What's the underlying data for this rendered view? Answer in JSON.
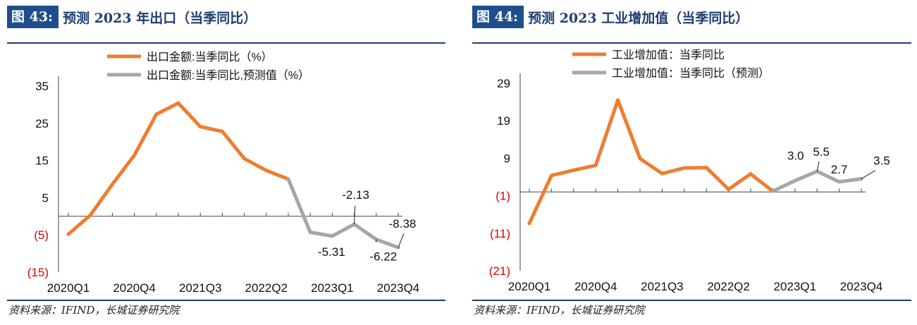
{
  "left": {
    "fig_tag": "图 43:",
    "title": "预测 2023 年出口（当季同比）",
    "source": "资料来源：IFIND，长城证券研究院",
    "chart_data": {
      "type": "line",
      "legend": [
        "出口金额:当季同比（%）",
        "出口金额:当季同比,预测值（%）"
      ],
      "legend_position": "top",
      "ylim": [
        -15,
        40
      ],
      "yticks": [
        35,
        25,
        15,
        5,
        -5,
        -15
      ],
      "ytick_labels": [
        "35",
        "25",
        "15",
        "5",
        "(5)",
        "(15)"
      ],
      "xticks": [
        "2020Q1",
        "2020Q4",
        "2021Q3",
        "2022Q2",
        "2023Q1",
        "2023Q4"
      ],
      "x": [
        "2020Q1",
        "2020Q2",
        "2020Q3",
        "2020Q4",
        "2021Q1",
        "2021Q2",
        "2021Q3",
        "2021Q4",
        "2022Q1",
        "2022Q2",
        "2022Q3",
        "2022Q4",
        "2023Q1",
        "2023Q2",
        "2023Q3",
        "2023Q4"
      ],
      "series": [
        {
          "name": "出口金额:当季同比（%）",
          "color": "#ed7d31",
          "values": [
            -4.8,
            0.3,
            8.6,
            16.4,
            27.4,
            30.4,
            24.1,
            22.8,
            15.5,
            12.3,
            10.0,
            null,
            null,
            null,
            null,
            null
          ]
        },
        {
          "name": "出口金额:当季同比,预测值（%）",
          "color": "#a6a6a6",
          "values": [
            null,
            null,
            null,
            null,
            null,
            null,
            null,
            null,
            null,
            null,
            10.0,
            -4.3,
            -5.31,
            -2.13,
            -6.22,
            -8.38
          ]
        }
      ],
      "data_labels": [
        {
          "x": "2023Q1",
          "text": "-5.31"
        },
        {
          "x": "2023Q2",
          "text": "-2.13"
        },
        {
          "x": "2023Q3",
          "text": "-6.22"
        },
        {
          "x": "2023Q4",
          "text": "-8.38"
        }
      ]
    }
  },
  "right": {
    "fig_tag": "图 44:",
    "title": "预测 2023 工业增加值（当季同比）",
    "source": "资料来源：IFIND，长城证券研究院",
    "chart_data": {
      "type": "line",
      "legend": [
        "工业增加值：当季同比",
        "工业增加值：当季同比（预测）"
      ],
      "legend_position": "top",
      "ylim": [
        -21,
        29
      ],
      "yticks": [
        29,
        19,
        9,
        -1,
        -11,
        -21
      ],
      "ytick_labels": [
        "29",
        "19",
        "9",
        "(1)",
        "(11)",
        "(21)"
      ],
      "xticks": [
        "2020Q1",
        "2020Q4",
        "2021Q3",
        "2022Q2",
        "2023Q1",
        "2023Q4"
      ],
      "x": [
        "2020Q1",
        "2020Q2",
        "2020Q3",
        "2020Q4",
        "2021Q1",
        "2021Q2",
        "2021Q3",
        "2021Q4",
        "2022Q1",
        "2022Q2",
        "2022Q3",
        "2022Q4",
        "2023Q1",
        "2023Q2",
        "2023Q3",
        "2023Q4"
      ],
      "series": [
        {
          "name": "工业增加值：当季同比",
          "color": "#ed7d31",
          "values": [
            -8.4,
            4.4,
            5.8,
            7.1,
            24.5,
            8.9,
            4.9,
            6.4,
            6.5,
            0.7,
            4.8,
            0.2,
            null,
            null,
            null,
            null
          ]
        },
        {
          "name": "工业增加值：当季同比（预测）",
          "color": "#a6a6a6",
          "values": [
            null,
            null,
            null,
            null,
            null,
            null,
            null,
            null,
            null,
            null,
            null,
            0.2,
            3.0,
            5.5,
            2.7,
            3.5
          ]
        }
      ],
      "data_labels": [
        {
          "x": "2023Q1",
          "text": "3.0"
        },
        {
          "x": "2023Q2",
          "text": "5.5"
        },
        {
          "x": "2023Q3",
          "text": "2.7"
        },
        {
          "x": "2023Q4",
          "text": "3.5"
        }
      ]
    }
  }
}
